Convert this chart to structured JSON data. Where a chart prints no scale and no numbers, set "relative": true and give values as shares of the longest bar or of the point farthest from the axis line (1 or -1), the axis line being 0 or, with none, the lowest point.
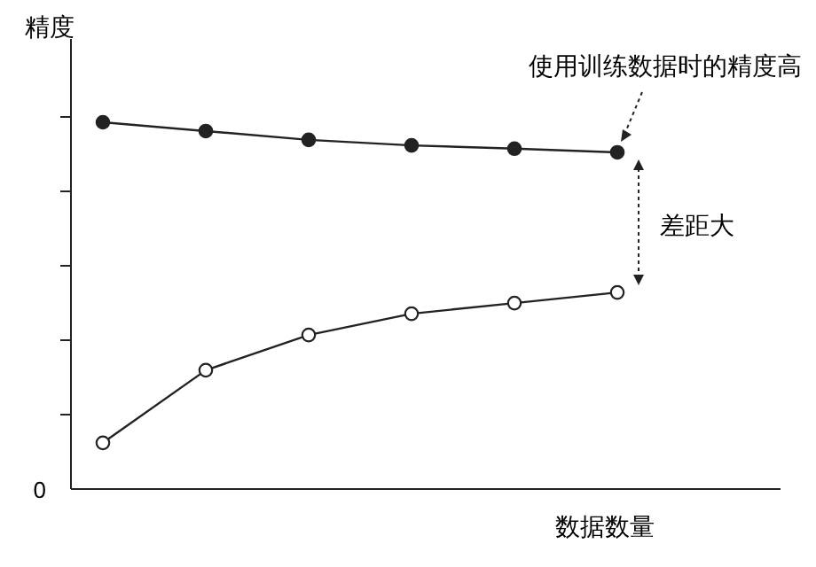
{
  "chart_data": {
    "type": "line",
    "relative": true,
    "ylabel": "精度",
    "xlabel": "数据数量",
    "categories": [
      null,
      null,
      null,
      null,
      null,
      null
    ],
    "marker": "circle",
    "line_style": "solid",
    "series": [
      {
        "color": "#222222",
        "values": [
          1,
          0.976,
          0.952,
          0.937,
          0.928,
          0.918
        ]
      },
      {
        "color": "#222222",
        "values": [
          0.126,
          0.324,
          0.42,
          0.478,
          0.507,
          0.536
        ]
      }
    ],
    "annotations": [
      "0",
      "使用训练数据时的精度高",
      "差距大"
    ]
  }
}
